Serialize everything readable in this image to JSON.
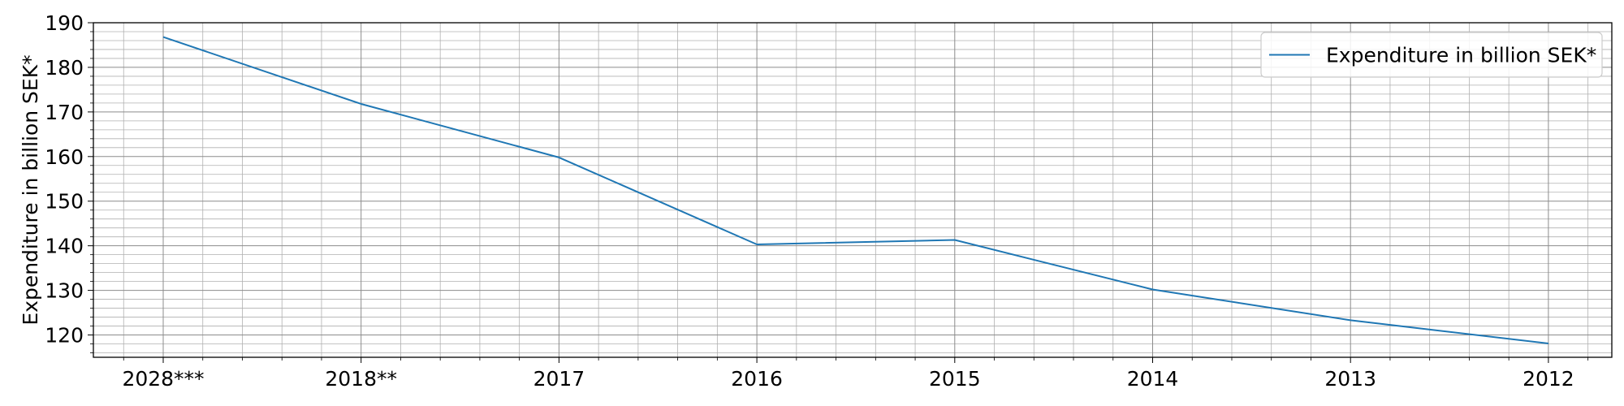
{
  "chart_data": {
    "type": "line",
    "categories": [
      "2028***",
      "2018**",
      "2017",
      "2016",
      "2015",
      "2014",
      "2013",
      "2012"
    ],
    "series": [
      {
        "name": "Expenditure in billion SEK*",
        "values": [
          186.8,
          171.8,
          159.8,
          140.3,
          141.3,
          130.2,
          123.3,
          118.1
        ],
        "color": "#1f77b4"
      }
    ],
    "title": "",
    "xlabel": "",
    "ylabel": "Expenditure in billion SEK*",
    "ylim": [
      115,
      190
    ],
    "yticks": [
      120,
      130,
      140,
      150,
      160,
      170,
      180,
      190
    ],
    "grid": true,
    "minor_grid": true,
    "legend_position": "top-right"
  }
}
